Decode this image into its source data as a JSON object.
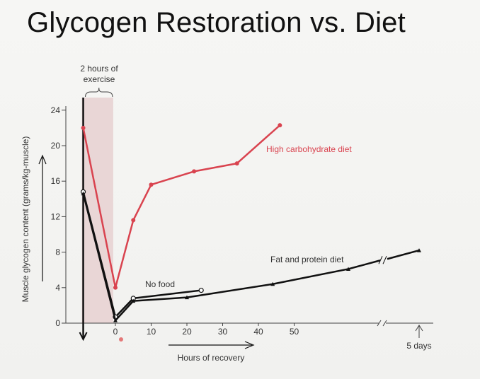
{
  "slide": {
    "title": "Glycogen Restoration vs. Diet"
  },
  "colors": {
    "high_carb": "#d9434f",
    "fat_protein": "#111111",
    "no_food": "#111111",
    "exercise_band": "#e9d6d6",
    "axis": "#444444",
    "text": "#333333"
  },
  "chart_data": {
    "type": "line",
    "title": "",
    "xlabel": "Hours of recovery",
    "ylabel": "Muscle glycogen content (grams/kg-muscle)",
    "ylim": [
      0,
      24
    ],
    "xlim": [
      -10,
      50
    ],
    "grid": false,
    "x_ticks": [
      "0",
      "10",
      "20",
      "30",
      "40",
      "50"
    ],
    "y_ticks": [
      "0",
      "4",
      "8",
      "12",
      "16",
      "20",
      "24"
    ],
    "x_extra_label": "5 days",
    "exercise_annotation": "2 hours of\nexercise",
    "exercise_span_hours": [
      -9,
      -1
    ],
    "series": [
      {
        "name": "High carbohydrate diet",
        "color_key": "high_carb",
        "marker": "filled-circle",
        "points": [
          [
            -9,
            22
          ],
          [
            0,
            4
          ],
          [
            5,
            11.6
          ],
          [
            10,
            15.6
          ],
          [
            22,
            17.1
          ],
          [
            34,
            18
          ],
          [
            46,
            22.3
          ]
        ]
      },
      {
        "name": "No food",
        "color_key": "no_food",
        "marker": "open-circle",
        "points": [
          [
            -9,
            14.8
          ],
          [
            0,
            0.7
          ],
          [
            5,
            2.8
          ],
          [
            24,
            3.7
          ]
        ]
      },
      {
        "name": "Fat and protein diet",
        "color_key": "fat_protein",
        "marker": "triangle",
        "points": [
          [
            -9,
            14.6
          ],
          [
            0,
            0.3
          ],
          [
            5,
            2.5
          ],
          [
            20,
            2.9
          ],
          [
            44,
            4.4
          ],
          [
            70,
            6.1
          ],
          "break",
          [
            "5 days",
            8.2
          ]
        ]
      }
    ]
  }
}
